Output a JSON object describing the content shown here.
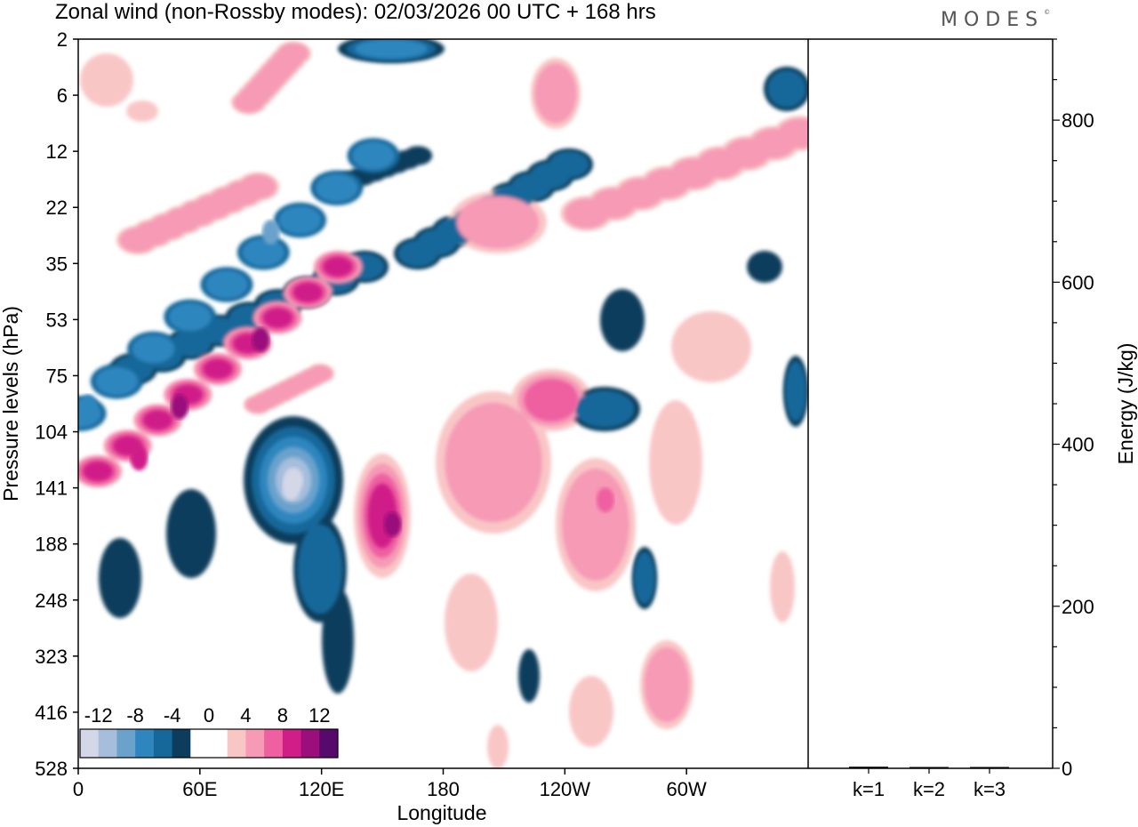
{
  "title": "Zonal wind (non-Rossby modes):  02/03/2026  00 UTC  + 168 hrs",
  "brand": "MODES",
  "brand_mark": "©",
  "colors": {
    "neg": [
      "#0d3d5c",
      "#16679a",
      "#2f86bf",
      "#6ba2cc",
      "#a6bedb",
      "#d4d7e8"
    ],
    "pos": [
      "#f9c6c6",
      "#f69ab6",
      "#ee60a0",
      "#d01d88",
      "#9a0f7c",
      "#560a6b"
    ]
  },
  "chart_data": [
    {
      "type": "heatmap",
      "xlabel": "Longitude",
      "ylabel": "Pressure levels (hPa)",
      "x_ticks": [
        "0",
        "60E",
        "120E",
        "180",
        "120W",
        "60W"
      ],
      "x_tick_degrees": [
        0,
        60,
        120,
        180,
        240,
        300
      ],
      "x_range": [
        0,
        360
      ],
      "y_ticks": [
        "2",
        "6",
        "12",
        "22",
        "35",
        "53",
        "75",
        "104",
        "141",
        "188",
        "248",
        "323",
        "416",
        "528"
      ],
      "colorbar_labels": [
        "-12",
        "-8",
        "-4",
        "0",
        "4",
        "8",
        "12"
      ],
      "colorbar_levels": [
        -12,
        -10,
        -8,
        -6,
        -4,
        -2,
        2,
        4,
        6,
        8,
        10,
        12
      ],
      "features": [
        {
          "lon": 105,
          "p": 141,
          "value": -14
        },
        {
          "lon": 155,
          "p": 170,
          "value": 10
        },
        {
          "lon": 50,
          "p": 90,
          "value": 11
        },
        {
          "lon": 90,
          "p": 60,
          "value": 10
        },
        {
          "lon": 30,
          "p": 120,
          "value": 8
        },
        {
          "lon": 95,
          "p": 27,
          "value": -8
        },
        {
          "lon": 5,
          "p": 90,
          "value": -6
        },
        {
          "lon": 240,
          "p": 85,
          "value": 6
        },
        {
          "lon": 260,
          "p": 150,
          "value": 6
        }
      ]
    },
    {
      "type": "bar",
      "categories": [
        "k=1",
        "k=2",
        "k=3"
      ],
      "values": [
        2,
        1,
        1
      ],
      "ylabel": "Energy (J/kg)",
      "y_ticks": [
        "0",
        "200",
        "400",
        "600",
        "800"
      ],
      "ylim": [
        0,
        900
      ]
    }
  ]
}
